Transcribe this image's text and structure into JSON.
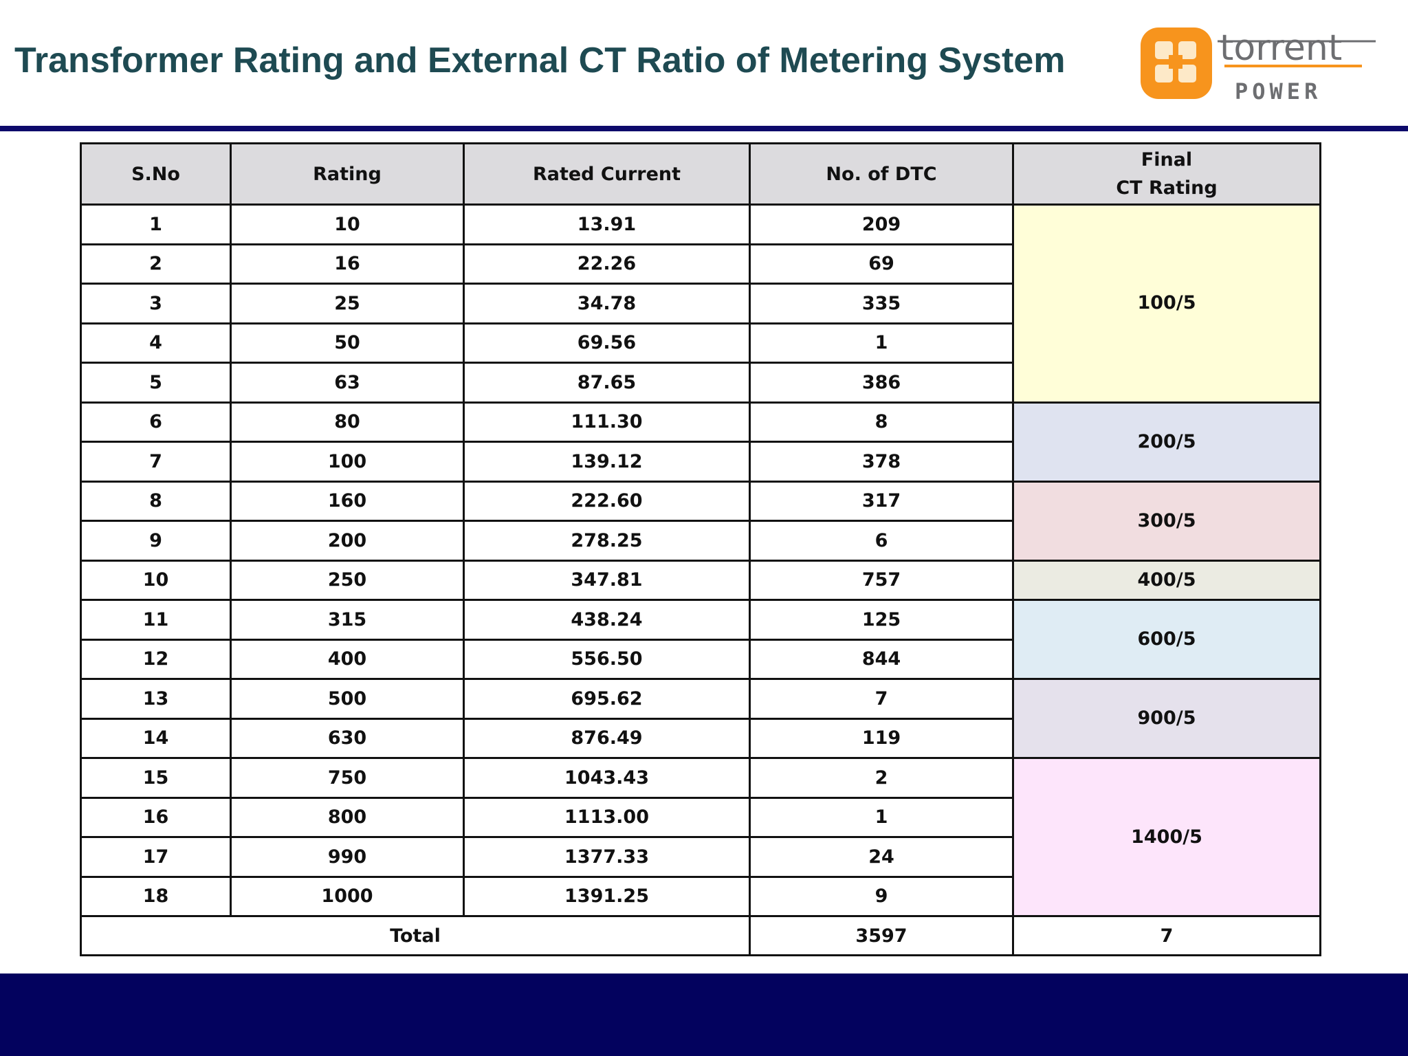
{
  "header": {
    "title": "Transformer Rating and External CT Ratio of Metering System",
    "logo": {
      "brand_top": "torrent",
      "brand_bottom": "POWER",
      "colors": {
        "orange": "#f7941d",
        "gray": "#6d6e71"
      }
    }
  },
  "table": {
    "columns": [
      "S.No",
      "Rating",
      "Rated Current",
      "No. of DTC",
      "Final",
      "CT Rating"
    ],
    "rows": [
      {
        "sno": "1",
        "rating": "10",
        "current": "13.91",
        "dtc": "209"
      },
      {
        "sno": "2",
        "rating": "16",
        "current": "22.26",
        "dtc": "69"
      },
      {
        "sno": "3",
        "rating": "25",
        "current": "34.78",
        "dtc": "335"
      },
      {
        "sno": "4",
        "rating": "50",
        "current": "69.56",
        "dtc": "1"
      },
      {
        "sno": "5",
        "rating": "63",
        "current": "87.65",
        "dtc": "386"
      },
      {
        "sno": "6",
        "rating": "80",
        "current": "111.30",
        "dtc": "8"
      },
      {
        "sno": "7",
        "rating": "100",
        "current": "139.12",
        "dtc": "378"
      },
      {
        "sno": "8",
        "rating": "160",
        "current": "222.60",
        "dtc": "317"
      },
      {
        "sno": "9",
        "rating": "200",
        "current": "278.25",
        "dtc": "6"
      },
      {
        "sno": "10",
        "rating": "250",
        "current": "347.81",
        "dtc": "757"
      },
      {
        "sno": "11",
        "rating": "315",
        "current": "438.24",
        "dtc": "125"
      },
      {
        "sno": "12",
        "rating": "400",
        "current": "556.50",
        "dtc": "844"
      },
      {
        "sno": "13",
        "rating": "500",
        "current": "695.62",
        "dtc": "7"
      },
      {
        "sno": "14",
        "rating": "630",
        "current": "876.49",
        "dtc": "119"
      },
      {
        "sno": "15",
        "rating": "750",
        "current": "1043.43",
        "dtc": "2"
      },
      {
        "sno": "16",
        "rating": "800",
        "current": "1113.00",
        "dtc": "1"
      },
      {
        "sno": "17",
        "rating": "990",
        "current": "1377.33",
        "dtc": "24"
      },
      {
        "sno": "18",
        "rating": "1000",
        "current": "1391.25",
        "dtc": "9"
      }
    ],
    "ct_groups": [
      {
        "label": "100/5",
        "rows": 5,
        "color": "#fffed8"
      },
      {
        "label": "200/5",
        "rows": 2,
        "color": "#dfe3f0"
      },
      {
        "label": "300/5",
        "rows": 2,
        "color": "#f1dde0"
      },
      {
        "label": "400/5",
        "rows": 1,
        "color": "#ebebe2"
      },
      {
        "label": "600/5",
        "rows": 2,
        "color": "#dfecf4"
      },
      {
        "label": "900/5",
        "rows": 2,
        "color": "#e5e1ec"
      },
      {
        "label": "1400/5",
        "rows": 4,
        "color": "#fde5fb"
      }
    ],
    "total": {
      "label": "Total",
      "dtc": "3597",
      "ct": "7"
    }
  },
  "colors": {
    "title": "#1e4a52",
    "rule": "#0d0a6b",
    "footer": "#03025e",
    "header_bg": "#dcdbde"
  }
}
